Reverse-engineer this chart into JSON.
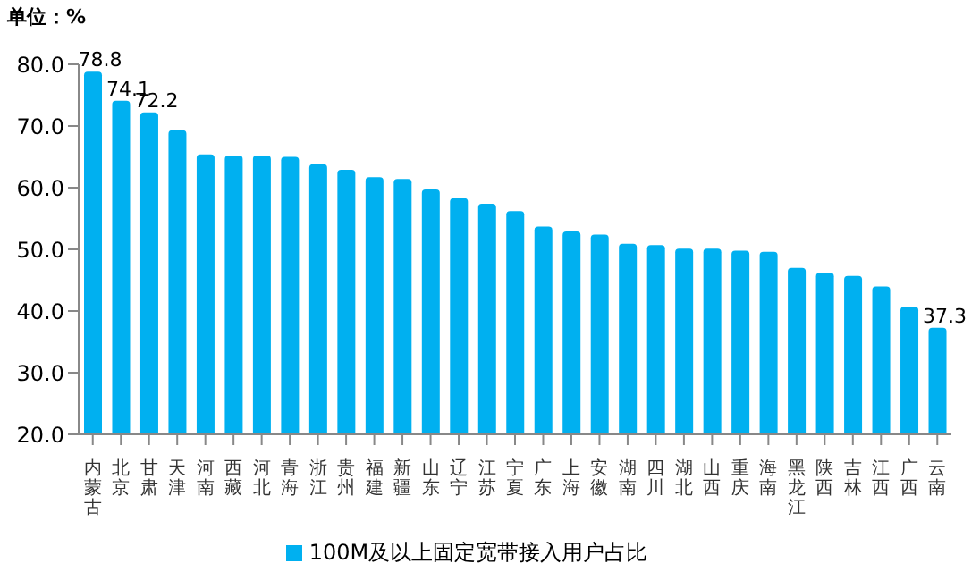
{
  "chart_data": {
    "type": "bar",
    "ylabel": "单位：%",
    "categories": [
      "内蒙古",
      "北京",
      "甘肃",
      "天津",
      "河南",
      "西藏",
      "河北",
      "青海",
      "浙江",
      "贵州",
      "福建",
      "新疆",
      "山东",
      "辽宁",
      "江苏",
      "宁夏",
      "广东",
      "上海",
      "安徽",
      "湖南",
      "四川",
      "湖北",
      "山西",
      "重庆",
      "海南",
      "黑龙江",
      "陕西",
      "吉林",
      "江西",
      "广西",
      "云南"
    ],
    "series": [
      {
        "name": "100M及以上固定宽带接入用户占比",
        "color": "#00b0f0",
        "values": [
          78.8,
          74.1,
          72.2,
          69.3,
          65.4,
          65.2,
          65.2,
          65.0,
          63.8,
          62.9,
          61.7,
          61.4,
          59.7,
          58.3,
          57.4,
          56.2,
          53.7,
          52.9,
          52.4,
          50.9,
          50.7,
          50.1,
          50.1,
          49.8,
          49.6,
          47.0,
          46.2,
          45.7,
          44.0,
          40.7,
          37.3
        ],
        "value_labels": [
          "78.8",
          "74.1",
          "72.2",
          null,
          null,
          null,
          null,
          null,
          null,
          null,
          null,
          null,
          null,
          null,
          null,
          null,
          null,
          null,
          null,
          null,
          null,
          null,
          null,
          null,
          null,
          null,
          null,
          null,
          null,
          null,
          "37.3"
        ]
      }
    ],
    "ylim": [
      20,
      80
    ],
    "yticks": [
      {
        "value": 20,
        "label": "20.0"
      },
      {
        "value": 30,
        "label": "30.0"
      },
      {
        "value": 40,
        "label": "40.0"
      },
      {
        "value": 50,
        "label": "50.0"
      },
      {
        "value": 60,
        "label": "60.0"
      },
      {
        "value": 70,
        "label": "70.0"
      },
      {
        "value": 80,
        "label": "80.0"
      }
    ],
    "grid": false,
    "legend": "bottom"
  }
}
